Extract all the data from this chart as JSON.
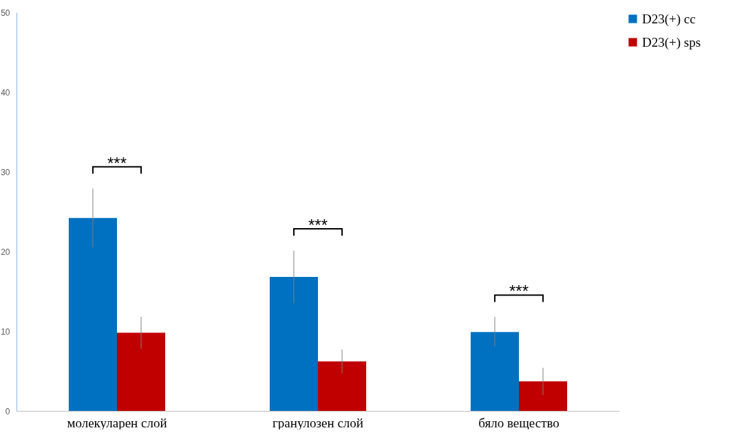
{
  "chart_data": {
    "type": "bar",
    "categories": [
      "молекуларен слой",
      "гранулозен слой",
      "бяло вещество"
    ],
    "series": [
      {
        "name": "D23(+) cc",
        "color": "#0070c0",
        "values": [
          24.2,
          16.8,
          9.9
        ],
        "errors": [
          3.7,
          3.3,
          1.9
        ]
      },
      {
        "name": "D23(+) sps",
        "color": "#c00000",
        "values": [
          9.8,
          6.2,
          3.7
        ],
        "errors": [
          2.0,
          1.5,
          1.7
        ]
      }
    ],
    "ylim": [
      0,
      50
    ],
    "yticks": [
      0,
      10,
      20,
      30,
      40,
      50
    ],
    "legend": "right",
    "annotations": [
      "***",
      "***",
      "***"
    ]
  }
}
